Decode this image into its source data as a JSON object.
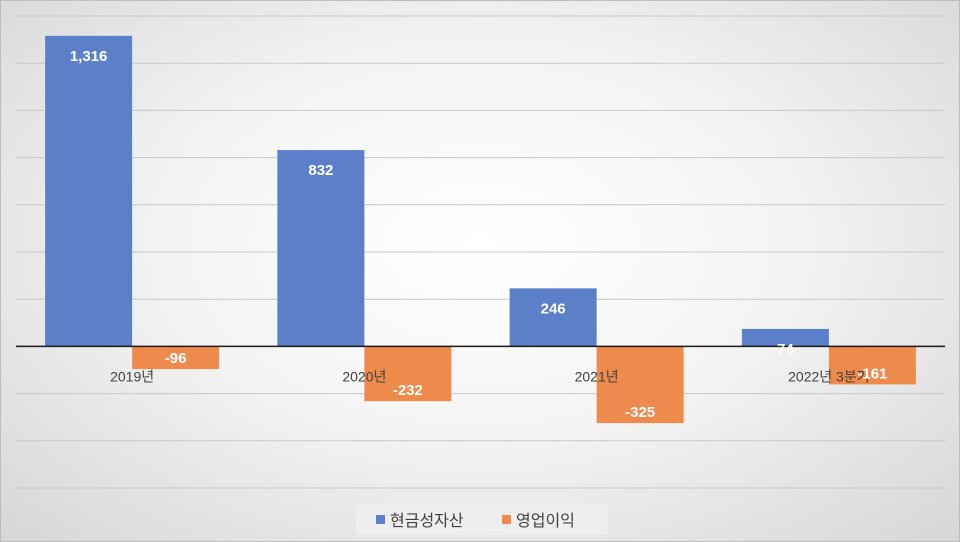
{
  "chart_data": {
    "type": "bar",
    "categories": [
      "2019년",
      "2020년",
      "2021년",
      "2022년 3분기"
    ],
    "series": [
      {
        "name": "현금성자산",
        "values": [
          1316,
          832,
          246,
          74
        ],
        "labels": [
          "1,316",
          "832",
          "246",
          "74"
        ],
        "color": "#5b80c9"
      },
      {
        "name": "영업이익",
        "values": [
          -96,
          -232,
          -325,
          -161
        ],
        "labels": [
          "-96",
          "-232",
          "-325",
          "-161"
        ],
        "color": "#ed8a4c"
      }
    ],
    "ylim": [
      -600,
      1400
    ],
    "grid": true,
    "legend": "bottom",
    "yticks_shown": false
  }
}
